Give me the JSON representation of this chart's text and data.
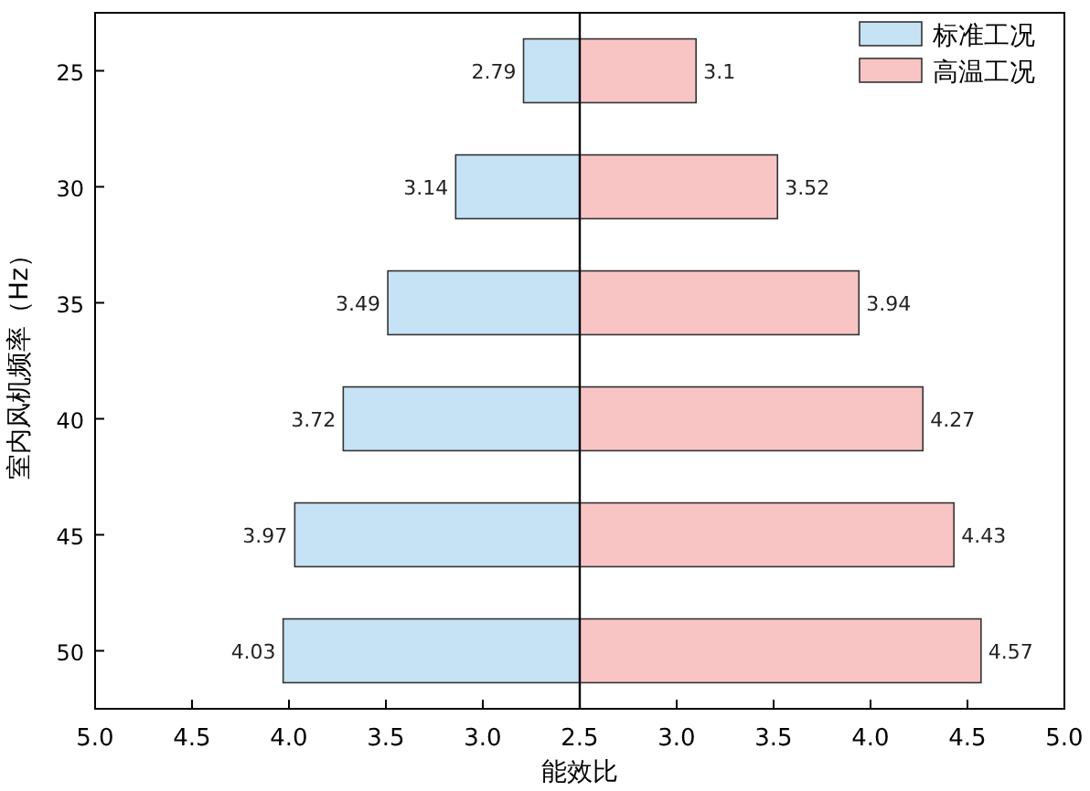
{
  "chart_data": [
    {
      "type": "bar",
      "orientation": "horizontal",
      "ylabel": "室内风机频率（Hz）",
      "xlabel": "能效比",
      "categories": [
        "25",
        "30",
        "35",
        "40",
        "45",
        "50"
      ],
      "xlim": [
        5.0,
        2.5
      ],
      "xticks": [
        {
          "value": 5,
          "label": "5.0"
        },
        4.5,
        {
          "value": 4,
          "label": "4.0"
        },
        3.5,
        {
          "value": 3,
          "label": "3.0"
        },
        2.5
      ],
      "data_labels": true,
      "legend": "top right",
      "series": [
        {
          "name": "标准工况",
          "color": "#c6e2f5",
          "values": [
            2.79,
            3.14,
            3.49,
            3.72,
            3.97,
            4.03
          ]
        }
      ]
    },
    {
      "type": "bar",
      "orientation": "horizontal",
      "categories": [
        "25",
        "30",
        "35",
        "40",
        "45",
        "50"
      ],
      "xlim": [
        2.5,
        5.0
      ],
      "xticks": [
        {
          "value": 3,
          "label": "3.0"
        },
        3.5,
        {
          "value": 4,
          "label": "4.0"
        },
        4.5,
        {
          "value": 5,
          "label": "5.0"
        }
      ],
      "data_labels": true,
      "legend": "top right",
      "tick_labels": "x",
      "series": [
        {
          "name": "高温工况",
          "color": "#f8c4c4",
          "values": [
            3.1,
            3.52,
            3.94,
            4.27,
            4.43,
            4.57
          ]
        }
      ]
    }
  ]
}
